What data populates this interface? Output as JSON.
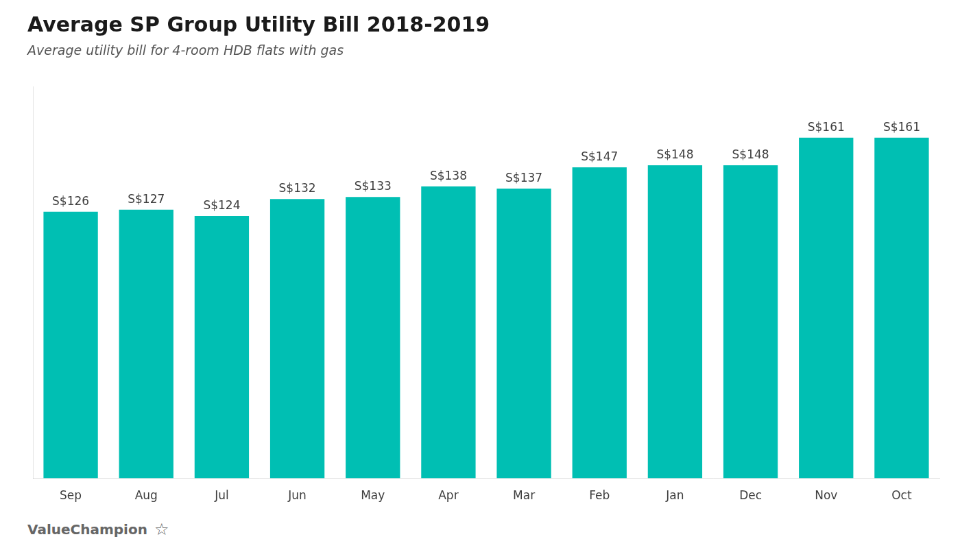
{
  "chart_data": {
    "type": "bar",
    "title": "Average SP Group Utility Bill 2018-2019",
    "subtitle": "Average utility bill for 4-room HDB flats with gas",
    "categories": [
      "Sep",
      "Aug",
      "Jul",
      "Jun",
      "May",
      "Apr",
      "Mar",
      "Feb",
      "Jan",
      "Dec",
      "Nov",
      "Oct"
    ],
    "values": [
      126,
      127,
      124,
      132,
      133,
      138,
      137,
      147,
      148,
      148,
      161,
      161
    ],
    "value_labels": [
      "S$126",
      "S$127",
      "S$124",
      "S$132",
      "S$133",
      "S$138",
      "S$137",
      "S$147",
      "S$148",
      "S$148",
      "S$161",
      "S$161"
    ],
    "data_labels": true,
    "color": "#00BFB3",
    "ylim": [
      0,
      185
    ],
    "grid": false,
    "tick_labels": "x",
    "annotations": [
      "ValueChampion",
      "☆"
    ]
  }
}
